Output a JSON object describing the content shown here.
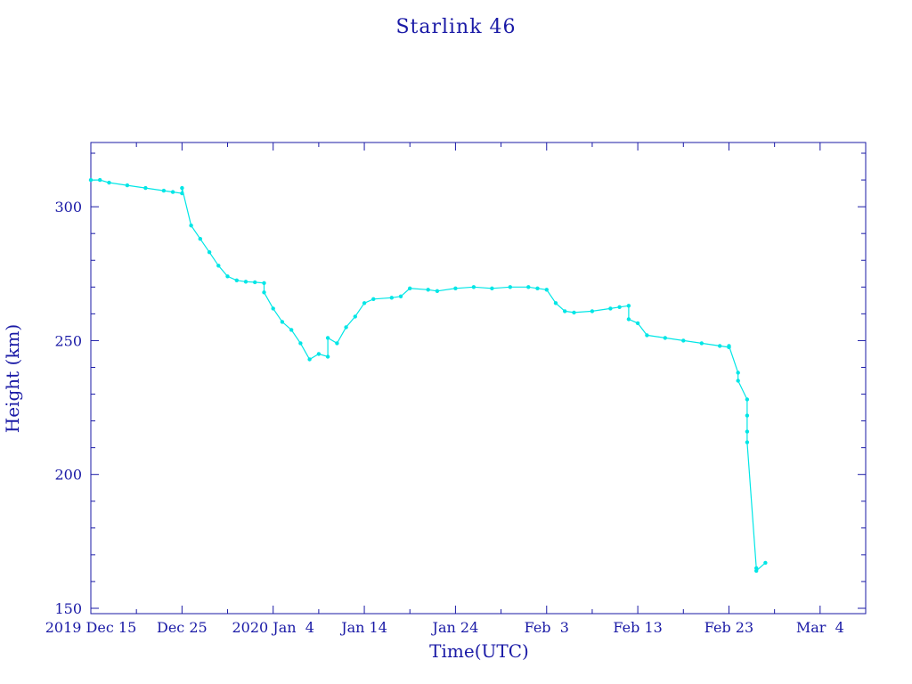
{
  "chart_data": {
    "type": "line",
    "title": "Starlink 46",
    "xlabel": "Time(UTC)",
    "ylabel": "Height (km)",
    "xlim": [
      "2019-12-15",
      "2020-03-09"
    ],
    "ylim": [
      148,
      324
    ],
    "y_ticks": [
      150,
      200,
      250,
      300
    ],
    "x_ticks": [
      {
        "date": "2019-12-15",
        "label": "2019 Dec 15"
      },
      {
        "date": "2019-12-25",
        "label": "Dec 25"
      },
      {
        "date": "2020-01-04",
        "label": "2020 Jan  4"
      },
      {
        "date": "2020-01-14",
        "label": "Jan 14"
      },
      {
        "date": "2020-01-24",
        "label": "Jan 24"
      },
      {
        "date": "2020-02-03",
        "label": "Feb  3"
      },
      {
        "date": "2020-02-13",
        "label": "Feb 13"
      },
      {
        "date": "2020-02-23",
        "label": "Feb 23"
      },
      {
        "date": "2020-03-04",
        "label": "Mar  4"
      }
    ],
    "grid": false,
    "series": [
      {
        "color": "#00e6e6",
        "points": [
          [
            "2019-12-15",
            310
          ],
          [
            "2019-12-16",
            310
          ],
          [
            "2019-12-17",
            309
          ],
          [
            "2019-12-19",
            308
          ],
          [
            "2019-12-21",
            307
          ],
          [
            "2019-12-23",
            306
          ],
          [
            "2019-12-24",
            305.5
          ],
          [
            "2019-12-25",
            305
          ],
          [
            "2019-12-25",
            307
          ],
          [
            "2019-12-26",
            293
          ],
          [
            "2019-12-27",
            288
          ],
          [
            "2019-12-28",
            283
          ],
          [
            "2019-12-29",
            278
          ],
          [
            "2019-12-30",
            274
          ],
          [
            "2019-12-31",
            272.5
          ],
          [
            "2020-01-01",
            272
          ],
          [
            "2020-01-02",
            271.8
          ],
          [
            "2020-01-03",
            271.5
          ],
          [
            "2020-01-03",
            268
          ],
          [
            "2020-01-04",
            262
          ],
          [
            "2020-01-05",
            257
          ],
          [
            "2020-01-06",
            254
          ],
          [
            "2020-01-07",
            249
          ],
          [
            "2020-01-08",
            243
          ],
          [
            "2020-01-09",
            245
          ],
          [
            "2020-01-10",
            244
          ],
          [
            "2020-01-10",
            251
          ],
          [
            "2020-01-11",
            249
          ],
          [
            "2020-01-12",
            255
          ],
          [
            "2020-01-13",
            259
          ],
          [
            "2020-01-14",
            264
          ],
          [
            "2020-01-15",
            265.5
          ],
          [
            "2020-01-17",
            266
          ],
          [
            "2020-01-18",
            266.5
          ],
          [
            "2020-01-19",
            269.5
          ],
          [
            "2020-01-21",
            269
          ],
          [
            "2020-01-22",
            268.5
          ],
          [
            "2020-01-24",
            269.5
          ],
          [
            "2020-01-26",
            270
          ],
          [
            "2020-01-28",
            269.5
          ],
          [
            "2020-01-30",
            270
          ],
          [
            "2020-02-01",
            270
          ],
          [
            "2020-02-02",
            269.5
          ],
          [
            "2020-02-03",
            269
          ],
          [
            "2020-02-04",
            264
          ],
          [
            "2020-02-05",
            261
          ],
          [
            "2020-02-06",
            260.5
          ],
          [
            "2020-02-08",
            261
          ],
          [
            "2020-02-10",
            262
          ],
          [
            "2020-02-11",
            262.5
          ],
          [
            "2020-02-12",
            263
          ],
          [
            "2020-02-12",
            258
          ],
          [
            "2020-02-13",
            256.5
          ],
          [
            "2020-02-14",
            252
          ],
          [
            "2020-02-16",
            251
          ],
          [
            "2020-02-18",
            250
          ],
          [
            "2020-02-20",
            249
          ],
          [
            "2020-02-22",
            248
          ],
          [
            "2020-02-23",
            247.5
          ],
          [
            "2020-02-23",
            248
          ],
          [
            "2020-02-24",
            238
          ],
          [
            "2020-02-24",
            235
          ],
          [
            "2020-02-25",
            228
          ],
          [
            "2020-02-25",
            222
          ],
          [
            "2020-02-25",
            216
          ],
          [
            "2020-02-25",
            212
          ],
          [
            "2020-02-26",
            165
          ],
          [
            "2020-02-26",
            164
          ],
          [
            "2020-02-27",
            167
          ]
        ]
      }
    ]
  }
}
